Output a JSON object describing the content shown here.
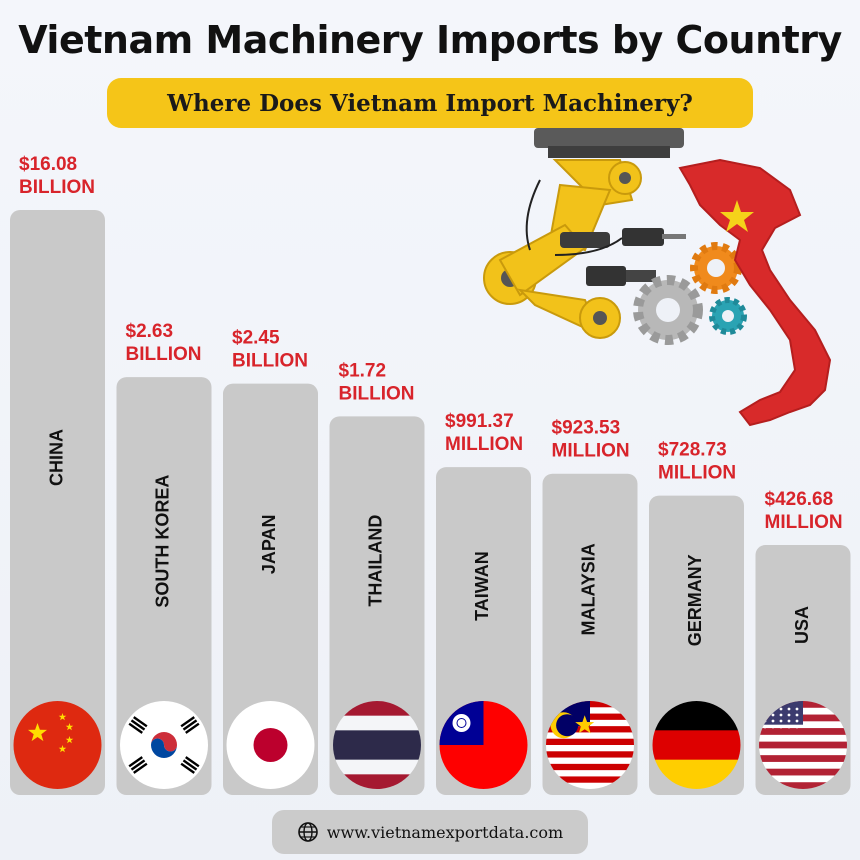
{
  "header": {
    "title": "Vietnam Machinery Imports by Country",
    "subtitle": "Where Does Vietnam Import Machinery?"
  },
  "footer": {
    "url": "www.vietnamexportdata.com",
    "icon": "globe-icon"
  },
  "colors": {
    "bar": "#c9c9c9",
    "value_label": "#d8242b",
    "subtitle_bg": "#f5c518",
    "map_red": "#d82a2a",
    "robot_yellow": "#f2c21a"
  },
  "chart_data": {
    "type": "bar",
    "unit": "USD",
    "categories": [
      "CHINA",
      "SOUTH KOREA",
      "JAPAN",
      "THAILAND",
      "TAIWAN",
      "MALAYSIA",
      "GERMANY",
      "USA"
    ],
    "values": [
      16080000000,
      2630000000,
      2450000000,
      1720000000,
      991370000,
      923530000,
      728730000,
      426680000
    ],
    "value_labels": [
      [
        "$16.08",
        "BILLION"
      ],
      [
        "$2.63",
        "BILLION"
      ],
      [
        "$2.45",
        "BILLION"
      ],
      [
        "$1.72",
        "BILLION"
      ],
      [
        "$991.37",
        "MILLION"
      ],
      [
        "$923.53",
        "MILLION"
      ],
      [
        "$728.73",
        "MILLION"
      ],
      [
        "$426.68",
        "MILLION"
      ]
    ],
    "flags": [
      "china-flag",
      "south-korea-flag",
      "japan-flag",
      "thailand-flag",
      "taiwan-flag",
      "malaysia-flag",
      "germany-flag",
      "usa-flag"
    ],
    "title": "Vietnam Machinery Imports by Country",
    "xlabel": "",
    "ylabel": ""
  }
}
